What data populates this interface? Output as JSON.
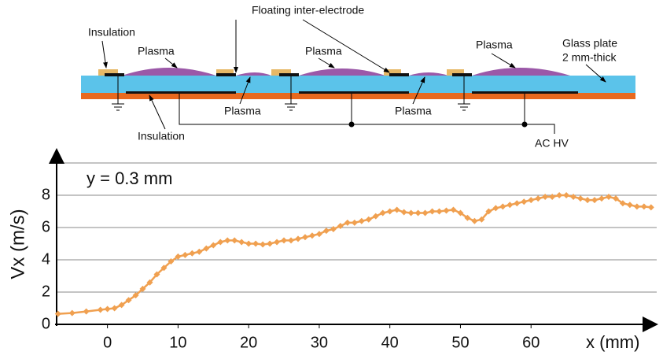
{
  "diagram": {
    "labels": [
      "Floating inter-electrode",
      "Insulation",
      "Plasma",
      "Plasma",
      "Plasma",
      "Glass plate",
      "2 mm-thick",
      "Plasma",
      "Plasma",
      "Insulation",
      "AC HV"
    ]
  },
  "chart_data": {
    "type": "line",
    "annotation": "y = 0.3 mm",
    "x_label": "x (mm)",
    "y_label": "Vx (m/s)",
    "xlim": [
      -7.2,
      77.8
    ],
    "ylim": [
      0,
      10
    ],
    "xticks": [
      0,
      10,
      20,
      30,
      40,
      50,
      60
    ],
    "yticks": [
      0,
      2,
      4,
      6,
      8
    ],
    "grid": true,
    "series": [
      {
        "color": "#f0a050",
        "x": [
          -7,
          -5,
          -3,
          -1,
          0,
          1,
          2,
          3,
          4,
          5,
          6,
          7,
          8,
          9,
          10,
          11,
          12,
          13,
          14,
          15,
          16,
          17,
          18,
          19,
          20,
          21,
          22,
          23,
          24,
          25,
          26,
          27,
          28,
          29,
          30,
          31,
          32,
          33,
          34,
          35,
          36,
          37,
          38,
          39,
          40,
          41,
          42,
          43,
          44,
          45,
          46,
          47,
          48,
          49,
          50,
          51,
          52,
          53,
          54,
          55,
          56,
          57,
          58,
          59,
          60,
          61,
          62,
          63,
          64,
          65,
          66,
          67,
          68,
          69,
          70,
          71,
          72,
          73,
          74,
          75,
          76,
          77
        ],
        "values": [
          0.65,
          0.7,
          0.8,
          0.9,
          0.95,
          1.0,
          1.2,
          1.5,
          1.8,
          2.2,
          2.6,
          3.1,
          3.5,
          3.9,
          4.2,
          4.3,
          4.4,
          4.5,
          4.7,
          4.9,
          5.1,
          5.2,
          5.2,
          5.1,
          5.0,
          5.0,
          4.95,
          5.0,
          5.1,
          5.2,
          5.2,
          5.3,
          5.4,
          5.5,
          5.6,
          5.8,
          5.9,
          6.1,
          6.3,
          6.3,
          6.4,
          6.5,
          6.7,
          6.9,
          7.0,
          7.1,
          6.95,
          6.9,
          6.9,
          6.9,
          7.0,
          7.0,
          7.05,
          7.1,
          6.9,
          6.6,
          6.4,
          6.5,
          7.0,
          7.2,
          7.3,
          7.4,
          7.5,
          7.6,
          7.7,
          7.8,
          7.9,
          7.9,
          8.0,
          8.0,
          7.9,
          7.8,
          7.7,
          7.7,
          7.8,
          7.9,
          7.8,
          7.5,
          7.4,
          7.3,
          7.3,
          7.25
        ]
      }
    ]
  }
}
